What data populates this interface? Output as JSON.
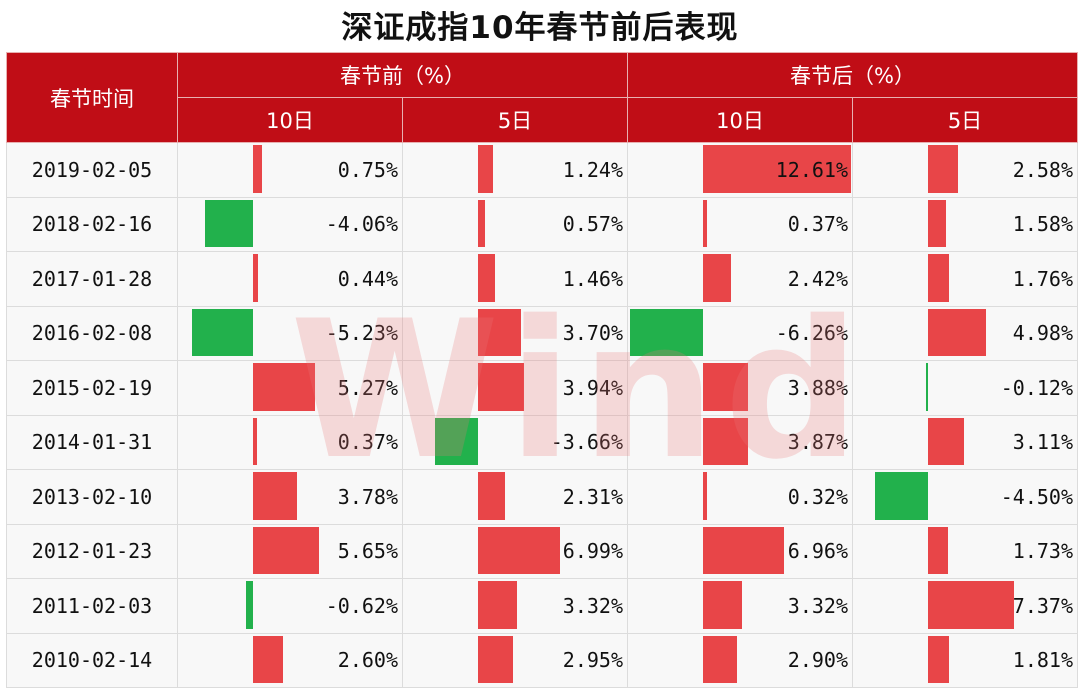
{
  "title": "深证成指10年春节前后表现",
  "watermark": "Wind",
  "colors": {
    "header": "#c00d16",
    "positive": "#e84548",
    "negative": "#22b14c"
  },
  "headers": {
    "date": "春节时间",
    "before": "春节前（%）",
    "after": "春节后（%）",
    "sub": [
      "10日",
      "5日",
      "10日",
      "5日"
    ]
  },
  "rows": [
    {
      "date": "2019-02-05",
      "values": [
        0.75,
        1.24,
        12.61,
        2.58
      ],
      "labels": [
        "0.75%",
        "1.24%",
        "12.61%",
        "2.58%"
      ]
    },
    {
      "date": "2018-02-16",
      "values": [
        -4.06,
        0.57,
        0.37,
        1.58
      ],
      "labels": [
        "-4.06%",
        "0.57%",
        "0.37%",
        "1.58%"
      ]
    },
    {
      "date": "2017-01-28",
      "values": [
        0.44,
        1.46,
        2.42,
        1.76
      ],
      "labels": [
        "0.44%",
        "1.46%",
        "2.42%",
        "1.76%"
      ]
    },
    {
      "date": "2016-02-08",
      "values": [
        -5.23,
        3.7,
        -6.26,
        4.98
      ],
      "labels": [
        "-5.23%",
        "3.70%",
        "-6.26%",
        "4.98%"
      ]
    },
    {
      "date": "2015-02-19",
      "values": [
        5.27,
        3.94,
        3.88,
        -0.12
      ],
      "labels": [
        "5.27%",
        "3.94%",
        "3.88%",
        "-0.12%"
      ]
    },
    {
      "date": "2014-01-31",
      "values": [
        0.37,
        -3.66,
        3.87,
        3.11
      ],
      "labels": [
        "0.37%",
        "-3.66%",
        "3.87%",
        "3.11%"
      ]
    },
    {
      "date": "2013-02-10",
      "values": [
        3.78,
        2.31,
        0.32,
        -4.5
      ],
      "labels": [
        "3.78%",
        "2.31%",
        "0.32%",
        "-4.50%"
      ]
    },
    {
      "date": "2012-01-23",
      "values": [
        5.65,
        6.99,
        6.96,
        1.73
      ],
      "labels": [
        "5.65%",
        "6.99%",
        "6.96%",
        "1.73%"
      ]
    },
    {
      "date": "2011-02-03",
      "values": [
        -0.62,
        3.32,
        3.32,
        7.37
      ],
      "labels": [
        "-0.62%",
        "3.32%",
        "3.32%",
        "7.37%"
      ]
    },
    {
      "date": "2010-02-14",
      "values": [
        2.6,
        2.95,
        2.9,
        1.81
      ],
      "labels": [
        "2.60%",
        "2.95%",
        "2.90%",
        "1.81%"
      ]
    }
  ]
}
